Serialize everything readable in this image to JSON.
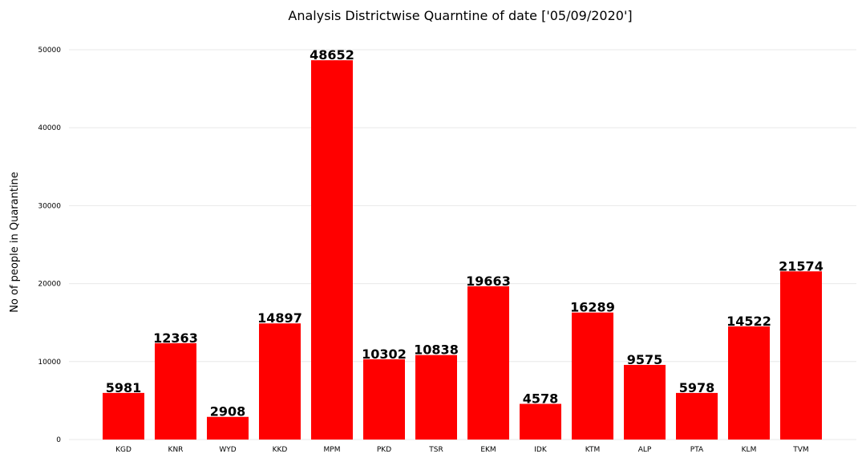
{
  "chart_data": {
    "type": "bar",
    "title": "Analysis Districtwise Quarntine of date ['05/09/2020']",
    "xlabel": "",
    "ylabel": "No of people in Quarantine",
    "categories": [
      "KGD",
      "KNR",
      "WYD",
      "KKD",
      "MPM",
      "PKD",
      "TSR",
      "EKM",
      "IDK",
      "KTM",
      "ALP",
      "PTA",
      "KLM",
      "TVM"
    ],
    "values": [
      5981,
      12363,
      2908,
      14897,
      48652,
      10302,
      10838,
      19663,
      4578,
      16289,
      9575,
      5978,
      14522,
      21574
    ],
    "ylim": [
      0,
      50000
    ],
    "yticks": [
      0,
      10000,
      20000,
      30000,
      40000,
      50000
    ],
    "grid": true,
    "legend": "none",
    "bar_color": "#ff0000",
    "data_labels": true
  }
}
